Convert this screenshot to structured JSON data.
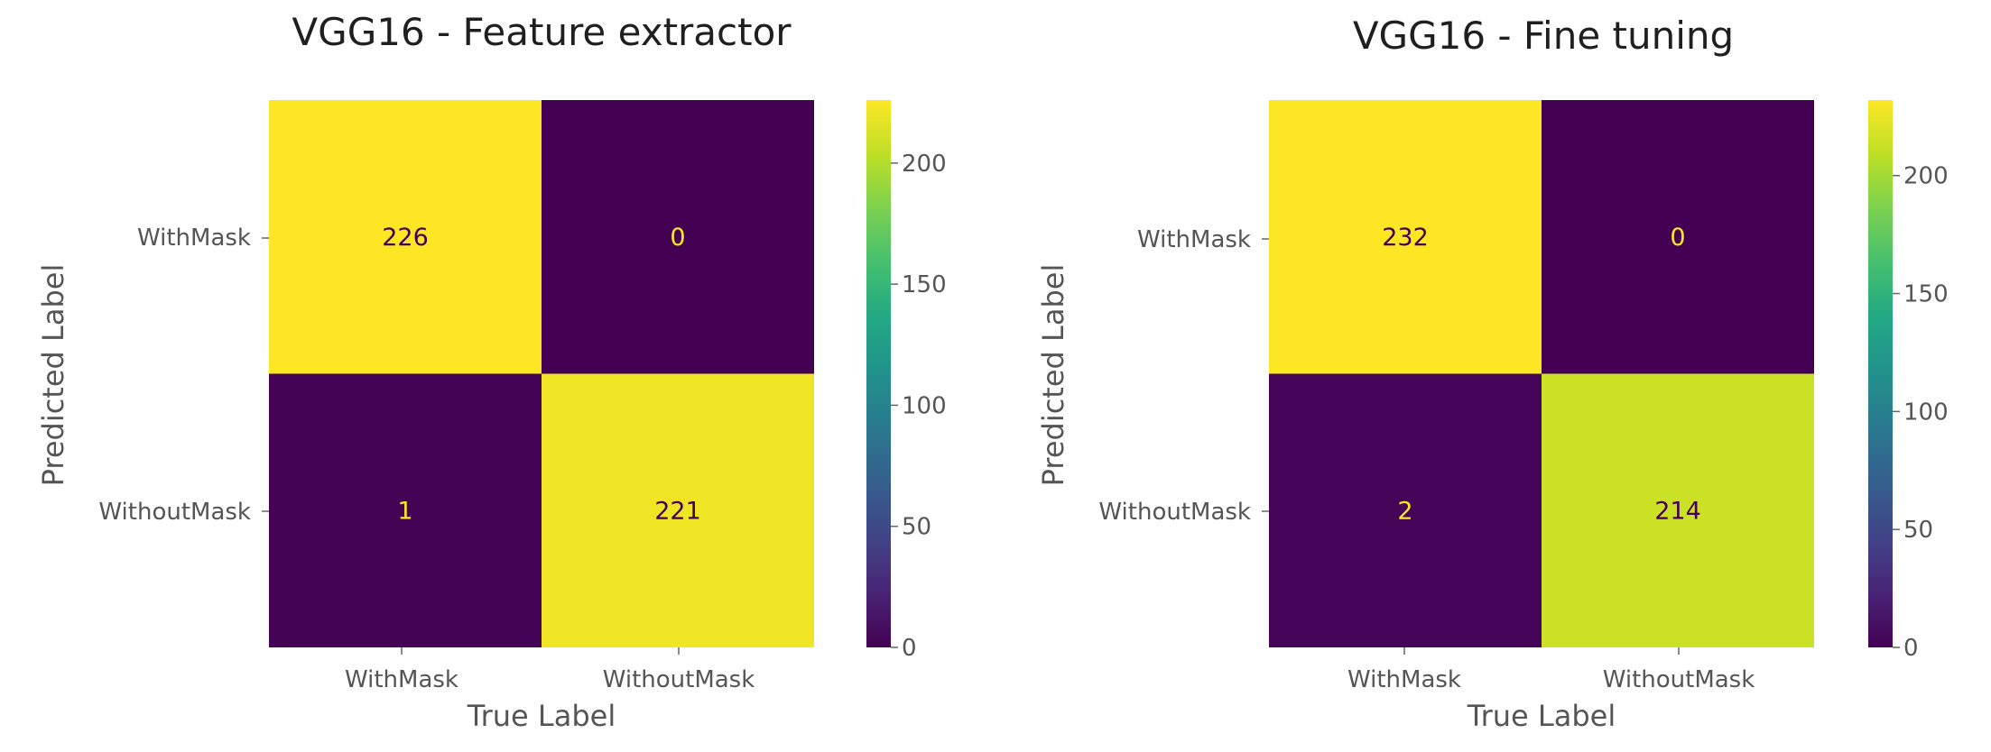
{
  "chart_data": [
    {
      "type": "heatmap",
      "title": "VGG16 - Feature extractor",
      "xlabel": "True Label",
      "ylabel": "Predicted Label",
      "x_categories": [
        "WithMask",
        "WithoutMask"
      ],
      "y_categories": [
        "WithMask",
        "WithoutMask"
      ],
      "values": [
        [
          226,
          0
        ],
        [
          1,
          221
        ]
      ],
      "colormap": "viridis",
      "colorbar": {
        "min": 0,
        "max": 226,
        "ticks": [
          0,
          50,
          100,
          150,
          200
        ]
      },
      "grid": false
    },
    {
      "type": "heatmap",
      "title": "VGG16 - Fine tuning",
      "xlabel": "True Label",
      "ylabel": "Predicted Label",
      "x_categories": [
        "WithMask",
        "WithoutMask"
      ],
      "y_categories": [
        "WithMask",
        "WithoutMask"
      ],
      "values": [
        [
          232,
          0
        ],
        [
          2,
          214
        ]
      ],
      "colormap": "viridis",
      "colorbar": {
        "min": 0,
        "max": 232,
        "ticks": [
          0,
          50,
          100,
          150,
          200
        ]
      },
      "grid": false
    }
  ],
  "colors": {
    "background": "#ffffff",
    "text": "#555555",
    "title": "#1f1f1f",
    "label_on_dark": "#fde725",
    "label_on_light": "#440154"
  }
}
